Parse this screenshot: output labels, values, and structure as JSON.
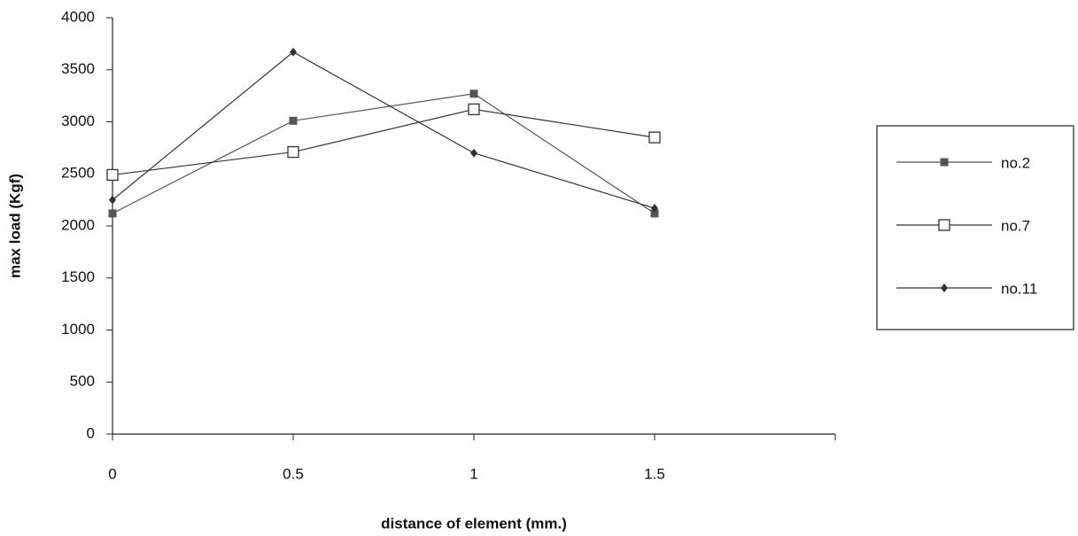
{
  "chart_data": {
    "type": "line",
    "x_label": "distance of element (mm.)",
    "y_label": "max load (Kgf)",
    "x": [
      0,
      0.5,
      1,
      1.5
    ],
    "series": [
      {
        "name": "no.2",
        "color": "#555555",
        "marker": "square",
        "values": [
          2120,
          3010,
          3270,
          2120
        ]
      },
      {
        "name": "no.7",
        "color": "#333333",
        "marker": "square-open",
        "values": [
          2490,
          2710,
          3120,
          2850
        ]
      },
      {
        "name": "no.11",
        "color": "#333333",
        "marker": "diamond",
        "values": [
          2250,
          3670,
          2700,
          2170
        ]
      }
    ],
    "xlim": [
      0,
      2
    ],
    "xticks": [
      0,
      0.5,
      1,
      1.5
    ],
    "ylim": [
      0,
      4000
    ],
    "yticks": [
      0,
      500,
      1000,
      1500,
      2000,
      2500,
      3000,
      3500,
      4000
    ],
    "grid": false,
    "legend": "right"
  }
}
